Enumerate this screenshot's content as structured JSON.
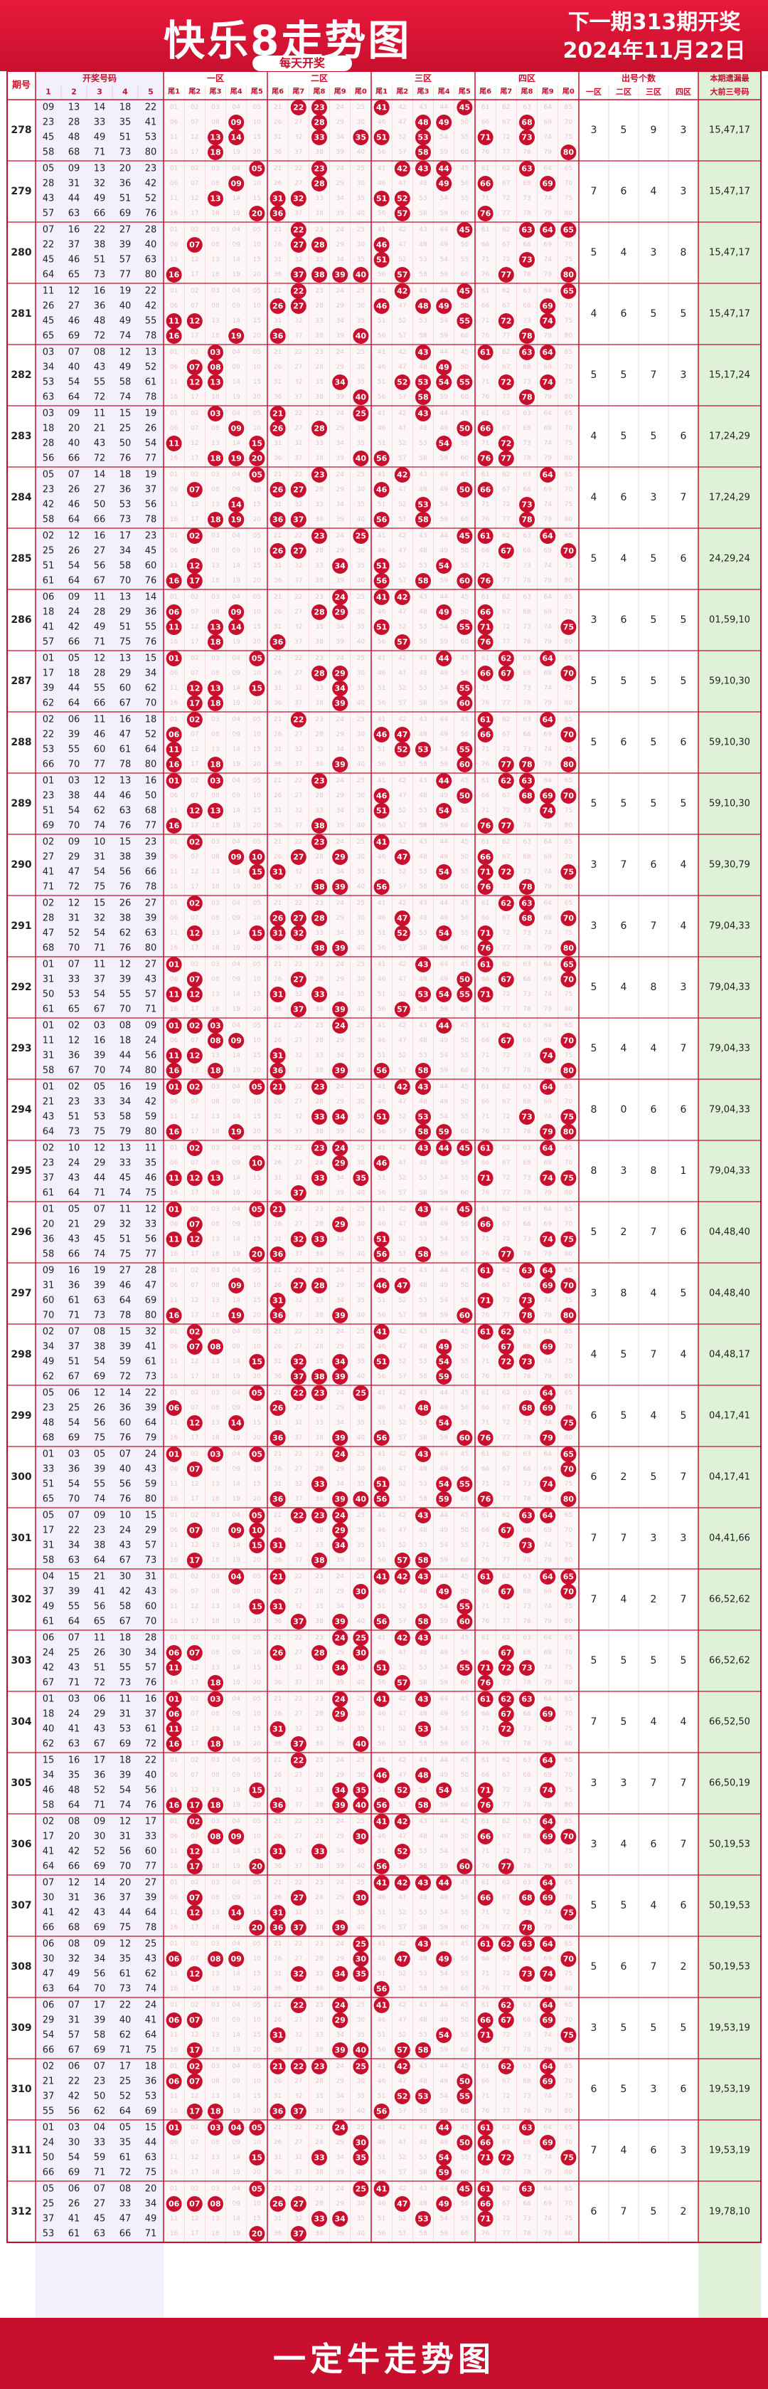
{
  "header": {
    "title": "快乐8走势图",
    "subtitle": "每天开奖",
    "next_draw_line1": "下一期313期开奖",
    "next_draw_line2": "2024年11月22日"
  },
  "footer": {
    "text": "一定牛走势图"
  },
  "columns": {
    "issue": "期号",
    "draw_numbers": "开奖号码",
    "draw_sub": [
      "1",
      "2",
      "3",
      "4",
      "5"
    ],
    "zones": [
      "一区",
      "二区",
      "三区",
      "四区"
    ],
    "tail_labels": [
      "尾1",
      "尾2",
      "尾3",
      "尾4",
      "尾5",
      "尾6",
      "尾7",
      "尾8",
      "尾9",
      "尾0"
    ],
    "count_title": "出号个数",
    "count_zones": [
      "一区",
      "二区",
      "三区",
      "四区"
    ],
    "miss_title_1": "本期遗漏最",
    "miss_title_2": "大前三号码"
  },
  "colors": {
    "ball": "#c8102e",
    "frame": "#c8102e",
    "miss_bg": "#dff2d8",
    "draw_bg": "#f3f0fb",
    "ghost": "#e6c6cc"
  },
  "chart_data": {
    "type": "table",
    "rows": [
      {
        "issue": "278",
        "numbers": [
          9,
          13,
          14,
          18,
          22,
          23,
          28,
          33,
          35,
          41,
          45,
          48,
          49,
          51,
          53,
          58,
          68,
          71,
          73,
          80
        ],
        "counts": [
          3,
          5,
          9,
          3
        ],
        "miss": "15,47,17"
      },
      {
        "issue": "279",
        "numbers": [
          5,
          9,
          13,
          20,
          23,
          28,
          31,
          32,
          36,
          42,
          43,
          44,
          49,
          51,
          52,
          57,
          63,
          66,
          69,
          76
        ],
        "counts": [
          7,
          6,
          4,
          3
        ],
        "miss": "15,47,17"
      },
      {
        "issue": "280",
        "numbers": [
          7,
          16,
          22,
          27,
          28,
          22,
          37,
          38,
          39,
          40,
          45,
          46,
          51,
          57,
          63,
          64,
          65,
          73,
          77,
          80
        ],
        "counts": [
          5,
          4,
          3,
          8
        ],
        "miss": "15,47,17"
      },
      {
        "issue": "281",
        "numbers": [
          11,
          12,
          16,
          19,
          22,
          26,
          27,
          36,
          40,
          42,
          45,
          46,
          48,
          49,
          55,
          65,
          69,
          72,
          74,
          78
        ],
        "counts": [
          4,
          6,
          5,
          5
        ],
        "miss": "15,47,17"
      },
      {
        "issue": "282",
        "numbers": [
          3,
          7,
          8,
          12,
          13,
          34,
          40,
          43,
          49,
          52,
          53,
          54,
          55,
          58,
          61,
          63,
          64,
          72,
          74,
          78
        ],
        "counts": [
          5,
          5,
          7,
          3
        ],
        "miss": "15,17,24"
      },
      {
        "issue": "283",
        "numbers": [
          3,
          9,
          11,
          15,
          19,
          18,
          20,
          21,
          25,
          26,
          28,
          40,
          43,
          50,
          54,
          56,
          66,
          72,
          76,
          77
        ],
        "counts": [
          4,
          5,
          5,
          6
        ],
        "miss": "17,24,29"
      },
      {
        "issue": "284",
        "numbers": [
          5,
          7,
          14,
          18,
          19,
          23,
          26,
          27,
          36,
          37,
          42,
          46,
          50,
          53,
          56,
          58,
          64,
          66,
          73,
          78
        ],
        "counts": [
          4,
          6,
          3,
          7
        ],
        "miss": "17,24,29"
      },
      {
        "issue": "285",
        "numbers": [
          2,
          12,
          16,
          17,
          23,
          25,
          26,
          27,
          34,
          45,
          51,
          54,
          56,
          58,
          60,
          61,
          64,
          67,
          70,
          76
        ],
        "counts": [
          5,
          4,
          5,
          6
        ],
        "miss": "24,29,24"
      },
      {
        "issue": "286",
        "numbers": [
          6,
          9,
          11,
          13,
          14,
          18,
          24,
          28,
          29,
          36,
          41,
          42,
          49,
          51,
          55,
          57,
          66,
          71,
          75,
          76
        ],
        "counts": [
          3,
          6,
          5,
          5
        ],
        "miss": "01,59,10"
      },
      {
        "issue": "287",
        "numbers": [
          1,
          5,
          12,
          13,
          15,
          17,
          18,
          28,
          29,
          34,
          39,
          44,
          55,
          60,
          62,
          62,
          64,
          66,
          67,
          70
        ],
        "counts": [
          5,
          5,
          5,
          5
        ],
        "miss": "59,10,30"
      },
      {
        "issue": "288",
        "numbers": [
          2,
          6,
          11,
          16,
          18,
          22,
          39,
          46,
          47,
          52,
          53,
          55,
          60,
          61,
          64,
          66,
          70,
          77,
          78,
          80
        ],
        "counts": [
          5,
          6,
          5,
          6
        ],
        "miss": "59,10,30"
      },
      {
        "issue": "289",
        "numbers": [
          1,
          3,
          12,
          13,
          16,
          23,
          38,
          44,
          46,
          50,
          51,
          54,
          62,
          63,
          68,
          69,
          70,
          74,
          76,
          77
        ],
        "counts": [
          5,
          5,
          5,
          5
        ],
        "miss": "59,10,30"
      },
      {
        "issue": "290",
        "numbers": [
          2,
          9,
          10,
          15,
          23,
          27,
          29,
          31,
          38,
          39,
          41,
          47,
          54,
          56,
          66,
          71,
          72,
          75,
          76,
          78
        ],
        "counts": [
          3,
          7,
          6,
          4
        ],
        "miss": "59,30,79"
      },
      {
        "issue": "291",
        "numbers": [
          2,
          12,
          15,
          26,
          27,
          28,
          31,
          32,
          38,
          39,
          47,
          52,
          54,
          62,
          63,
          68,
          70,
          71,
          76,
          80
        ],
        "counts": [
          3,
          6,
          7,
          4
        ],
        "miss": "79,04,33"
      },
      {
        "issue": "292",
        "numbers": [
          1,
          7,
          11,
          12,
          27,
          31,
          33,
          37,
          39,
          43,
          50,
          53,
          54,
          55,
          57,
          61,
          65,
          67,
          70,
          71
        ],
        "counts": [
          5,
          4,
          8,
          3
        ],
        "miss": "79,04,33"
      },
      {
        "issue": "293",
        "numbers": [
          1,
          2,
          3,
          8,
          9,
          11,
          12,
          16,
          18,
          24,
          31,
          36,
          39,
          44,
          56,
          58,
          67,
          70,
          74,
          80
        ],
        "counts": [
          5,
          4,
          4,
          7
        ],
        "miss": "79,04,33"
      },
      {
        "issue": "294",
        "numbers": [
          1,
          2,
          5,
          16,
          19,
          21,
          23,
          33,
          34,
          42,
          43,
          51,
          53,
          58,
          59,
          64,
          73,
          75,
          79,
          80
        ],
        "counts": [
          8,
          0,
          6,
          6
        ],
        "miss": "79,04,33"
      },
      {
        "issue": "295",
        "numbers": [
          2,
          10,
          12,
          13,
          11,
          23,
          24,
          29,
          33,
          35,
          37,
          43,
          44,
          45,
          46,
          61,
          64,
          71,
          74,
          75
        ],
        "counts": [
          8,
          3,
          8,
          1
        ],
        "miss": "79,04,33"
      },
      {
        "issue": "296",
        "numbers": [
          1,
          5,
          7,
          11,
          12,
          20,
          21,
          29,
          32,
          33,
          36,
          43,
          45,
          51,
          56,
          58,
          66,
          74,
          75,
          77
        ],
        "counts": [
          5,
          2,
          7,
          6
        ],
        "miss": "04,48,40"
      },
      {
        "issue": "297",
        "numbers": [
          9,
          16,
          19,
          27,
          28,
          31,
          36,
          39,
          46,
          47,
          60,
          61,
          63,
          64,
          69,
          70,
          71,
          73,
          78,
          80
        ],
        "counts": [
          3,
          8,
          4,
          5
        ],
        "miss": "04,48,40"
      },
      {
        "issue": "298",
        "numbers": [
          2,
          7,
          8,
          15,
          32,
          34,
          37,
          38,
          39,
          41,
          49,
          51,
          54,
          59,
          61,
          62,
          67,
          69,
          72,
          73
        ],
        "counts": [
          4,
          5,
          7,
          4
        ],
        "miss": "04,48,17"
      },
      {
        "issue": "299",
        "numbers": [
          5,
          6,
          12,
          14,
          22,
          23,
          25,
          26,
          36,
          39,
          48,
          54,
          56,
          60,
          64,
          68,
          69,
          75,
          76,
          79
        ],
        "counts": [
          6,
          5,
          4,
          5
        ],
        "miss": "04,17,41"
      },
      {
        "issue": "300",
        "numbers": [
          1,
          3,
          5,
          7,
          24,
          33,
          36,
          39,
          40,
          43,
          51,
          54,
          55,
          56,
          59,
          65,
          70,
          74,
          76,
          80
        ],
        "counts": [
          6,
          2,
          5,
          7
        ],
        "miss": "04,17,41"
      },
      {
        "issue": "301",
        "numbers": [
          5,
          7,
          9,
          10,
          15,
          17,
          22,
          23,
          24,
          29,
          31,
          34,
          38,
          43,
          57,
          58,
          63,
          64,
          67,
          73
        ],
        "counts": [
          7,
          7,
          3,
          3
        ],
        "miss": "04,41,66"
      },
      {
        "issue": "302",
        "numbers": [
          4,
          15,
          21,
          30,
          31,
          37,
          39,
          41,
          42,
          43,
          49,
          55,
          56,
          58,
          60,
          61,
          64,
          65,
          67,
          70
        ],
        "counts": [
          7,
          4,
          2,
          7
        ],
        "miss": "66,52,62"
      },
      {
        "issue": "303",
        "numbers": [
          6,
          7,
          11,
          18,
          28,
          24,
          25,
          26,
          30,
          34,
          42,
          43,
          51,
          55,
          57,
          67,
          71,
          72,
          73,
          76
        ],
        "counts": [
          5,
          5,
          5,
          5
        ],
        "miss": "66,52,62"
      },
      {
        "issue": "304",
        "numbers": [
          1,
          3,
          6,
          11,
          16,
          18,
          24,
          29,
          31,
          37,
          40,
          41,
          43,
          53,
          61,
          62,
          63,
          67,
          69,
          72
        ],
        "counts": [
          7,
          5,
          4,
          4
        ],
        "miss": "66,52,50"
      },
      {
        "issue": "305",
        "numbers": [
          15,
          16,
          17,
          18,
          22,
          34,
          35,
          36,
          39,
          40,
          46,
          48,
          52,
          54,
          56,
          58,
          64,
          71,
          74,
          76
        ],
        "counts": [
          3,
          3,
          7,
          7
        ],
        "miss": "66,50,19"
      },
      {
        "issue": "306",
        "numbers": [
          2,
          8,
          9,
          12,
          17,
          17,
          20,
          30,
          31,
          33,
          41,
          42,
          52,
          56,
          60,
          64,
          66,
          69,
          70,
          77
        ],
        "counts": [
          3,
          4,
          6,
          7
        ],
        "miss": "50,19,53"
      },
      {
        "issue": "307",
        "numbers": [
          7,
          12,
          14,
          20,
          27,
          30,
          31,
          36,
          37,
          39,
          41,
          42,
          43,
          44,
          64,
          66,
          68,
          69,
          75,
          78
        ],
        "counts": [
          5,
          5,
          4,
          6
        ],
        "miss": "50,19,53"
      },
      {
        "issue": "308",
        "numbers": [
          6,
          8,
          9,
          12,
          25,
          30,
          32,
          34,
          35,
          43,
          47,
          49,
          56,
          61,
          62,
          63,
          64,
          70,
          73,
          74
        ],
        "counts": [
          5,
          6,
          7,
          2
        ],
        "miss": "50,19,53"
      },
      {
        "issue": "309",
        "numbers": [
          6,
          7,
          17,
          22,
          24,
          29,
          31,
          39,
          40,
          41,
          54,
          57,
          58,
          62,
          64,
          66,
          67,
          69,
          71,
          75
        ],
        "counts": [
          3,
          5,
          5,
          5
        ],
        "miss": "19,53,19"
      },
      {
        "issue": "310",
        "numbers": [
          2,
          6,
          7,
          17,
          18,
          21,
          22,
          23,
          25,
          36,
          37,
          42,
          50,
          52,
          53,
          55,
          56,
          62,
          64,
          69
        ],
        "counts": [
          6,
          5,
          3,
          6
        ],
        "miss": "19,53,19"
      },
      {
        "issue": "311",
        "numbers": [
          1,
          3,
          4,
          5,
          15,
          24,
          30,
          33,
          35,
          44,
          50,
          54,
          59,
          61,
          63,
          66,
          69,
          71,
          72,
          75
        ],
        "counts": [
          7,
          4,
          6,
          3
        ],
        "miss": "19,53,19"
      },
      {
        "issue": "312",
        "numbers": [
          5,
          6,
          7,
          8,
          20,
          25,
          26,
          27,
          33,
          34,
          37,
          41,
          45,
          47,
          49,
          53,
          61,
          63,
          66,
          71
        ],
        "counts": [
          6,
          7,
          5,
          2
        ],
        "miss": "19,78,10"
      }
    ]
  }
}
